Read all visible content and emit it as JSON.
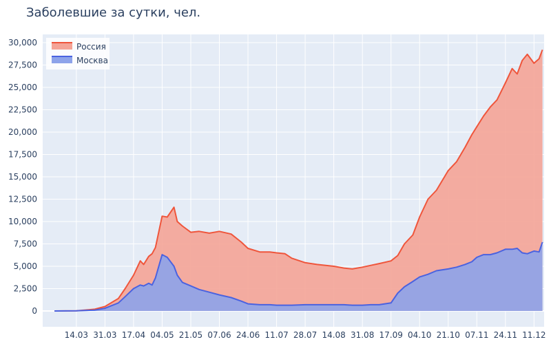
{
  "chart_data": {
    "type": "area",
    "title": "Заболевшие за сутки, чел.",
    "xlabel": "",
    "ylabel": "",
    "ylim": [
      0,
      30000
    ],
    "y_ticks": [
      0,
      2500,
      5000,
      7500,
      10000,
      12500,
      15000,
      17500,
      20000,
      22500,
      25000,
      27500,
      30000
    ],
    "y_tick_labels": [
      "0",
      "2,500",
      "5,000",
      "7,500",
      "10,000",
      "12,500",
      "15,000",
      "17,500",
      "20,000",
      "22,500",
      "25,000",
      "27,500",
      "30,000"
    ],
    "x_ticks": [
      "2020-03-14",
      "2020-03-31",
      "2020-04-17",
      "2020-05-04",
      "2020-05-21",
      "2020-06-07",
      "2020-06-24",
      "2020-07-11",
      "2020-07-28",
      "2020-08-14",
      "2020-08-31",
      "2020-09-17",
      "2020-10-04",
      "2020-10-21",
      "2020-11-07",
      "2020-11-24",
      "2020-12-11"
    ],
    "x_tick_labels": [
      "14.03",
      "31.03",
      "17.04",
      "04.05",
      "21.05",
      "07.06",
      "24.06",
      "11.07",
      "28.07",
      "14.08",
      "31.08",
      "17.09",
      "04.10",
      "21.10",
      "07.11",
      "24.11",
      "11.12"
    ],
    "grid": true,
    "legend_position": "top-left",
    "colors": {
      "plot_bg": "#e5ecf6",
      "grid": "#ffffff",
      "russia_line": "#ef553b",
      "russia_fill": "#f4a497",
      "moscow_line": "#4a62e0",
      "moscow_fill": "#8da3ea"
    },
    "x": [
      "2020-03-01",
      "2020-03-14",
      "2020-03-25",
      "2020-03-31",
      "2020-04-08",
      "2020-04-12",
      "2020-04-17",
      "2020-04-21",
      "2020-04-23",
      "2020-04-26",
      "2020-04-28",
      "2020-04-30",
      "2020-05-04",
      "2020-05-07",
      "2020-05-11",
      "2020-05-13",
      "2020-05-16",
      "2020-05-21",
      "2020-05-26",
      "2020-06-01",
      "2020-06-07",
      "2020-06-14",
      "2020-06-20",
      "2020-06-24",
      "2020-07-01",
      "2020-07-07",
      "2020-07-11",
      "2020-07-16",
      "2020-07-20",
      "2020-07-28",
      "2020-08-04",
      "2020-08-14",
      "2020-08-20",
      "2020-08-25",
      "2020-08-31",
      "2020-09-05",
      "2020-09-10",
      "2020-09-17",
      "2020-09-21",
      "2020-09-25",
      "2020-09-30",
      "2020-10-04",
      "2020-10-09",
      "2020-10-14",
      "2020-10-21",
      "2020-10-26",
      "2020-10-31",
      "2020-11-04",
      "2020-11-07",
      "2020-11-11",
      "2020-11-15",
      "2020-11-19",
      "2020-11-24",
      "2020-11-28",
      "2020-12-01",
      "2020-12-04",
      "2020-12-07",
      "2020-12-11",
      "2020-12-14",
      "2020-12-16"
    ],
    "series": [
      {
        "name": "Россия",
        "values": [
          0,
          20,
          200,
          500,
          1400,
          2500,
          4000,
          5600,
          5200,
          6100,
          6400,
          7100,
          10600,
          10500,
          11600,
          10000,
          9500,
          8800,
          8900,
          8700,
          8900,
          8600,
          7700,
          7000,
          6600,
          6600,
          6500,
          6400,
          5900,
          5400,
          5200,
          5000,
          4800,
          4700,
          4900,
          5100,
          5300,
          5600,
          6200,
          7500,
          8500,
          10500,
          12500,
          13500,
          15700,
          16700,
          18300,
          19700,
          20600,
          21800,
          22800,
          23600,
          25500,
          27100,
          26500,
          28000,
          28700,
          27700,
          28200,
          29200
        ]
      },
      {
        "name": "Москва",
        "values": [
          0,
          20,
          100,
          300,
          900,
          1600,
          2500,
          2900,
          2800,
          3100,
          2900,
          3700,
          6300,
          6000,
          5000,
          4000,
          3200,
          2800,
          2400,
          2100,
          1800,
          1500,
          1100,
          800,
          700,
          700,
          650,
          650,
          650,
          700,
          700,
          700,
          700,
          650,
          650,
          700,
          700,
          900,
          2000,
          2700,
          3300,
          3800,
          4100,
          4500,
          4700,
          4900,
          5200,
          5500,
          6000,
          6300,
          6300,
          6500,
          6900,
          6900,
          7000,
          6500,
          6400,
          6700,
          6600,
          7700
        ]
      }
    ]
  }
}
